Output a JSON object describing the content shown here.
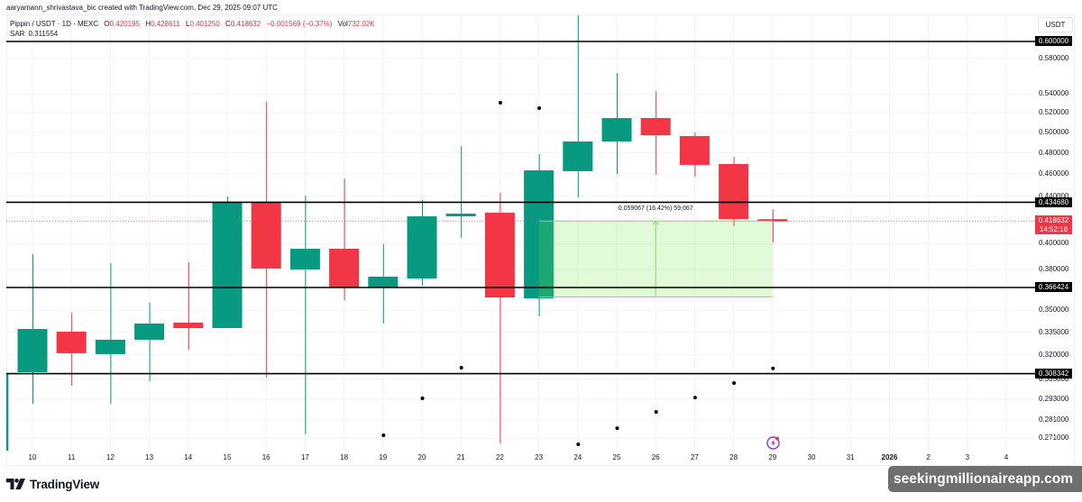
{
  "header": {
    "attribution": "aaryamann_shrivastava_bic created with TradingView.com, Dec 29, 2025 09:07 UTC"
  },
  "legend": {
    "symbol": "Pippin / USDT · 1D · MEXC",
    "ohlc": [
      {
        "label": "O",
        "value": "0.420195"
      },
      {
        "label": "H",
        "value": "0.428611"
      },
      {
        "label": "L",
        "value": "0.401250"
      },
      {
        "label": "C",
        "value": "0.418632"
      }
    ],
    "change": "−0.001569 (−0.37%)",
    "volume_label": "Vol",
    "volume_value": "732.02K",
    "indicator_name": "SAR",
    "indicator_value": "0.311554"
  },
  "price_axis": {
    "currency": "USDT",
    "current_price_label": "0.418632",
    "countdown": "14:52:18"
  },
  "measure": {
    "label": "0.059067 (16.42%) 59,067"
  },
  "footer": {
    "brand": "TradingView",
    "watermark": "seekingmillionaireapp.com"
  },
  "icons": {
    "logo": "tradingview-logo-icon",
    "alert": "lightning-alert-icon"
  },
  "colors": {
    "up": "#089981",
    "down": "#f23645",
    "level_line": "#000000",
    "sar_dot": "#000000",
    "grid": "#f0f3fa",
    "measure_fill": "rgba(104,230,60,0.2)",
    "measure_stroke": "#7fdc6a",
    "alert": "#9b30d9",
    "watermark_bg": "#6f6f6f"
  },
  "chart_data": {
    "type": "candlestick",
    "title": "Pippin / USDT · 1D · MEXC",
    "xlabel": "",
    "ylabel": "USDT",
    "y_scale": "log",
    "ylim": [
      0.265,
      0.64
    ],
    "grid": true,
    "legend_position": "top-left",
    "candles": [
      {
        "date": "9",
        "o": 0.262,
        "h": 0.3087,
        "l": 0.262,
        "c": 0.3087,
        "partial": true
      },
      {
        "date": "10",
        "o": 0.3092,
        "h": 0.3918,
        "l": 0.2902,
        "c": 0.3372
      },
      {
        "date": "11",
        "o": 0.3354,
        "h": 0.3483,
        "l": 0.3009,
        "c": 0.3212
      },
      {
        "date": "12",
        "o": 0.3206,
        "h": 0.3847,
        "l": 0.2902,
        "c": 0.33
      },
      {
        "date": "13",
        "o": 0.33,
        "h": 0.3553,
        "l": 0.3037,
        "c": 0.3409
      },
      {
        "date": "14",
        "o": 0.3415,
        "h": 0.3854,
        "l": 0.3235,
        "c": 0.3378
      },
      {
        "date": "15",
        "o": 0.3378,
        "h": 0.4398,
        "l": 0.3378,
        "c": 0.4342
      },
      {
        "date": "16",
        "o": 0.4342,
        "h": 0.5316,
        "l": 0.3059,
        "c": 0.3806
      },
      {
        "date": "17",
        "o": 0.3799,
        "h": 0.4406,
        "l": 0.273,
        "c": 0.396
      },
      {
        "date": "18",
        "o": 0.396,
        "h": 0.4559,
        "l": 0.3572,
        "c": 0.3664
      },
      {
        "date": "19",
        "o": 0.3664,
        "h": 0.3996,
        "l": 0.3409,
        "c": 0.3745
      },
      {
        "date": "20",
        "o": 0.3731,
        "h": 0.4366,
        "l": 0.3678,
        "c": 0.4226
      },
      {
        "date": "21",
        "o": 0.4226,
        "h": 0.4866,
        "l": 0.4047,
        "c": 0.4249
      },
      {
        "date": "22",
        "o": 0.4257,
        "h": 0.4429,
        "l": 0.2681,
        "c": 0.3592
      },
      {
        "date": "23",
        "o": 0.3585,
        "h": 0.4787,
        "l": 0.3458,
        "c": 0.4634
      },
      {
        "date": "24",
        "o": 0.4626,
        "h": 0.6322,
        "l": 0.439,
        "c": 0.491
      },
      {
        "date": "25",
        "o": 0.491,
        "h": 0.5632,
        "l": 0.4601,
        "c": 0.5146
      },
      {
        "date": "26",
        "o": 0.5146,
        "h": 0.5432,
        "l": 0.4592,
        "c": 0.4972
      },
      {
        "date": "27",
        "o": 0.4964,
        "h": 0.4999,
        "l": 0.4576,
        "c": 0.4685
      },
      {
        "date": "28",
        "o": 0.4693,
        "h": 0.4762,
        "l": 0.4143,
        "c": 0.4203
      },
      {
        "date": "29",
        "o": 0.420195,
        "h": 0.428611,
        "l": 0.40125,
        "c": 0.418632
      }
    ],
    "sar": [
      {
        "date": "19",
        "value": 0.2725
      },
      {
        "date": "20",
        "value": 0.2934
      },
      {
        "date": "21",
        "value": 0.312
      },
      {
        "date": "22",
        "value": 0.5306
      },
      {
        "date": "23",
        "value": 0.5249
      },
      {
        "date": "24",
        "value": 0.2676
      },
      {
        "date": "25",
        "value": 0.2764
      },
      {
        "date": "26",
        "value": 0.2856
      },
      {
        "date": "27",
        "value": 0.2939
      },
      {
        "date": "28",
        "value": 0.3026
      },
      {
        "date": "29",
        "value": 0.311554
      }
    ],
    "x_tick_labels": [
      "10",
      "11",
      "12",
      "13",
      "14",
      "15",
      "16",
      "17",
      "18",
      "19",
      "20",
      "21",
      "22",
      "23",
      "24",
      "25",
      "26",
      "27",
      "28",
      "29",
      "30",
      "31",
      "2026",
      "2",
      "3",
      "4"
    ],
    "x_tick_bold": [
      "2026"
    ],
    "y_tick_labels": [
      "0.600000",
      "0.580000",
      "0.540000",
      "0.520000",
      "0.500000",
      "0.480000",
      "0.460000",
      "0.440000",
      "0.400000",
      "0.380000",
      "0.350000",
      "0.335000",
      "0.320000",
      "0.305000",
      "0.293000",
      "0.281000",
      "0.271000"
    ],
    "horizontal_lines": [
      {
        "value": 0.6,
        "label": "0.600000"
      },
      {
        "value": 0.43468,
        "label": "0.434680"
      },
      {
        "value": 0.366424,
        "label": "0.366424"
      },
      {
        "value": 0.308342,
        "label": "0.308342"
      }
    ],
    "current_price": 0.418632,
    "measure": {
      "from_date": "23",
      "to_date": "29",
      "top": 0.418632,
      "bottom": 0.359565,
      "delta": 0.059067,
      "percent": 16.42,
      "ticks": 59067
    },
    "alert_marker_date": "29"
  }
}
